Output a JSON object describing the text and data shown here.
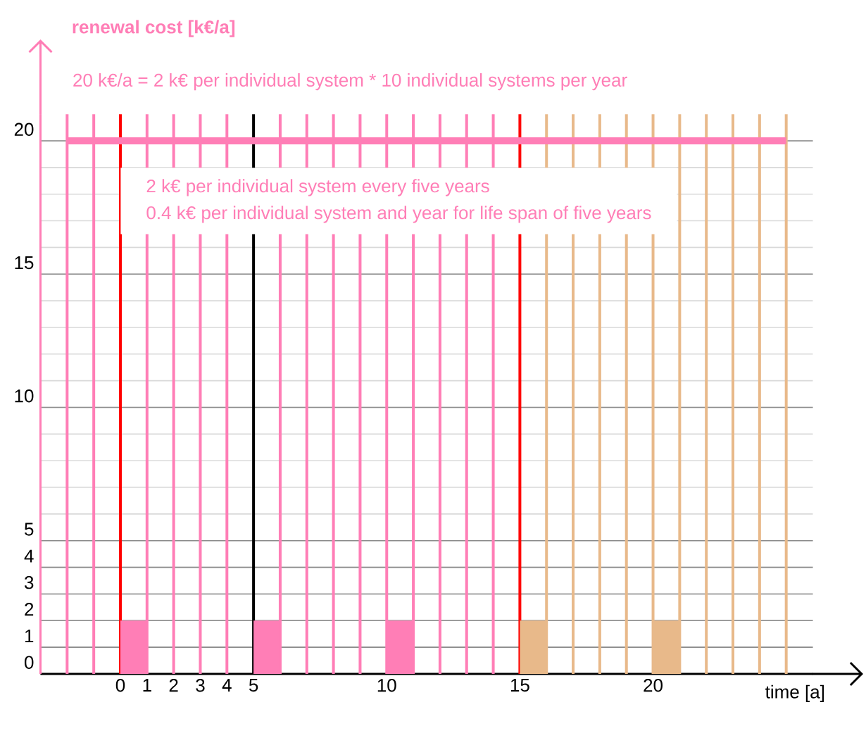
{
  "chart_data": {
    "type": "bar",
    "ylabel": "renewal cost [k€/a]",
    "xlabel": "time [a]",
    "annotations": [
      "20 k€/a = 2 k€ per individual system  *  10 individual systems per year",
      "2 k€ per individual system every  five years",
      "0.4 k€ per individual system and year for life span of five years"
    ],
    "xlim": [
      -3,
      26
    ],
    "ylim": [
      0,
      21
    ],
    "xticks": [
      0,
      1,
      2,
      3,
      4,
      5,
      10,
      15,
      20
    ],
    "yticks": [
      0,
      1,
      2,
      3,
      4,
      5,
      10,
      15,
      20
    ],
    "grid": "y",
    "series": [
      {
        "x": [
          0.5,
          5.5,
          10.5,
          15.5,
          20.5
        ],
        "values": [
          2,
          2,
          2,
          2,
          2
        ],
        "colors": [
          "#ff7eb6",
          "#ff7eb6",
          "#ff7eb6",
          "#e8b98a",
          "#e8b98a"
        ]
      },
      {
        "type": "line",
        "x": [
          -2,
          25
        ],
        "values": [
          20,
          20
        ],
        "color": "#ff7eb6"
      }
    ],
    "ref_lines": [
      {
        "axis": "x",
        "value": -2,
        "color": "#ff7eb6"
      },
      {
        "axis": "x",
        "value": -1,
        "color": "#ff7eb6"
      },
      {
        "axis": "x",
        "value": 1,
        "color": "#ff7eb6"
      },
      {
        "axis": "x",
        "value": 2,
        "color": "#ff7eb6"
      },
      {
        "axis": "x",
        "value": 3,
        "color": "#ff7eb6"
      },
      {
        "axis": "x",
        "value": 4,
        "color": "#ff7eb6"
      },
      {
        "axis": "x",
        "value": 6,
        "color": "#ff7eb6"
      },
      {
        "axis": "x",
        "value": 7,
        "color": "#ff7eb6"
      },
      {
        "axis": "x",
        "value": 8,
        "color": "#ff7eb6"
      },
      {
        "axis": "x",
        "value": 9,
        "color": "#ff7eb6"
      },
      {
        "axis": "x",
        "value": 10,
        "color": "#ff7eb6"
      },
      {
        "axis": "x",
        "value": 11,
        "color": "#ff7eb6"
      },
      {
        "axis": "x",
        "value": 12,
        "color": "#ff7eb6"
      },
      {
        "axis": "x",
        "value": 13,
        "color": "#ff7eb6"
      },
      {
        "axis": "x",
        "value": 14,
        "color": "#ff7eb6"
      },
      {
        "axis": "x",
        "value": 16,
        "color": "#e8b98a"
      },
      {
        "axis": "x",
        "value": 17,
        "color": "#e8b98a"
      },
      {
        "axis": "x",
        "value": 18,
        "color": "#e8b98a"
      },
      {
        "axis": "x",
        "value": 19,
        "color": "#e8b98a"
      },
      {
        "axis": "x",
        "value": 20,
        "color": "#e8b98a"
      },
      {
        "axis": "x",
        "value": 21,
        "color": "#e8b98a"
      },
      {
        "axis": "x",
        "value": 22,
        "color": "#e8b98a"
      },
      {
        "axis": "x",
        "value": 23,
        "color": "#e8b98a"
      },
      {
        "axis": "x",
        "value": 24,
        "color": "#e8b98a"
      },
      {
        "axis": "x",
        "value": 25,
        "color": "#e8b98a"
      },
      {
        "axis": "x",
        "value": 0,
        "color": "#ff0000"
      },
      {
        "axis": "x",
        "value": 5,
        "color": "#000000"
      },
      {
        "axis": "x",
        "value": 15,
        "color": "#ff0000"
      }
    ]
  }
}
